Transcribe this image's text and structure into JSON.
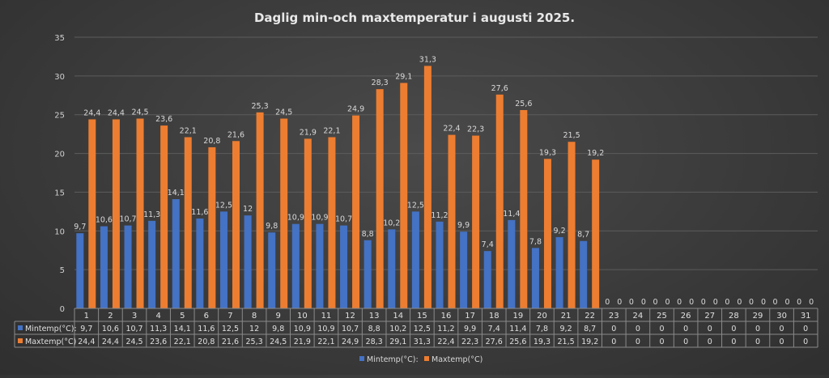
{
  "chart_data": {
    "type": "bar",
    "title": "Daglig min-och maxtemperatur i augusti 2025.",
    "xlabel": "",
    "ylabel": "",
    "ylim": [
      0,
      35
    ],
    "yticks": [
      0,
      5,
      10,
      15,
      20,
      25,
      30,
      35
    ],
    "grid": true,
    "legend_position": "bottom",
    "categories": [
      "1",
      "2",
      "3",
      "4",
      "5",
      "6",
      "7",
      "8",
      "9",
      "10",
      "11",
      "12",
      "13",
      "14",
      "15",
      "16",
      "17",
      "18",
      "19",
      "20",
      "21",
      "22",
      "23",
      "24",
      "25",
      "26",
      "27",
      "28",
      "29",
      "30",
      "31"
    ],
    "series": [
      {
        "name": "Mintemp(°C):",
        "color": "#4472c4",
        "values": [
          9.7,
          10.6,
          10.7,
          11.3,
          14.1,
          11.6,
          12.5,
          12,
          9.8,
          10.9,
          10.9,
          10.7,
          8.8,
          10.2,
          12.5,
          11.2,
          9.9,
          7.4,
          11.4,
          7.8,
          9.2,
          8.7,
          0,
          0,
          0,
          0,
          0,
          0,
          0,
          0,
          0
        ],
        "labels": [
          "9,7",
          "10,6",
          "10,7",
          "11,3",
          "14,1",
          "11,6",
          "12,5",
          "12",
          "9,8",
          "10,9",
          "10,9",
          "10,7",
          "8,8",
          "10,2",
          "12,5",
          "11,2",
          "9,9",
          "7,4",
          "11,4",
          "7,8",
          "9,2",
          "8,7",
          "0",
          "0",
          "0",
          "0",
          "0",
          "0",
          "0",
          "0",
          "0"
        ]
      },
      {
        "name": "Maxtemp(°C)",
        "color": "#ed7d31",
        "values": [
          24.4,
          24.4,
          24.5,
          23.6,
          22.1,
          20.8,
          21.6,
          25.3,
          24.5,
          21.9,
          22.1,
          24.9,
          28.3,
          29.1,
          31.3,
          22.4,
          22.3,
          27.6,
          25.6,
          19.3,
          21.5,
          19.2,
          0,
          0,
          0,
          0,
          0,
          0,
          0,
          0,
          0
        ],
        "labels": [
          "24,4",
          "24,4",
          "24,5",
          "23,6",
          "22,1",
          "20,8",
          "21,6",
          "25,3",
          "24,5",
          "21,9",
          "22,1",
          "24,9",
          "28,3",
          "29,1",
          "31,3",
          "22,4",
          "22,3",
          "27,6",
          "25,6",
          "19,3",
          "21,5",
          "19,2",
          "0",
          "0",
          "0",
          "0",
          "0",
          "0",
          "0",
          "0",
          "0"
        ]
      }
    ]
  }
}
